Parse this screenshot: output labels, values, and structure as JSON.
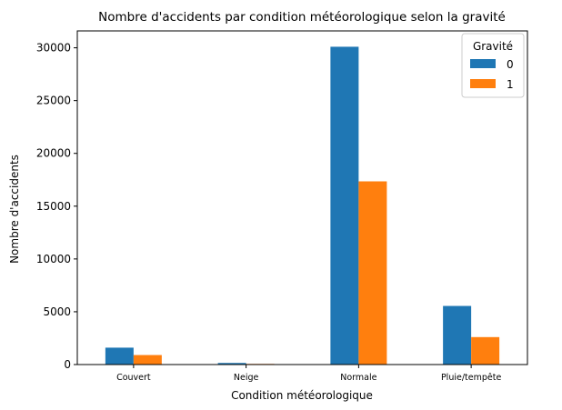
{
  "chart_data": {
    "type": "bar",
    "title": "Nombre d'accidents par condition météorologique selon la gravité",
    "xlabel": "Condition météorologique",
    "ylabel": "Nombre d'accidents",
    "categories": [
      "Couvert",
      "Neige",
      "Normale",
      "Pluie/tempête"
    ],
    "series": [
      {
        "name": "0",
        "values": [
          1600,
          150,
          30100,
          5550
        ],
        "color": "#1f77b4"
      },
      {
        "name": "1",
        "values": [
          900,
          60,
          17350,
          2600
        ],
        "color": "#ff7f0e"
      }
    ],
    "ylim": [
      0,
      31600
    ],
    "yticks": [
      0,
      5000,
      10000,
      15000,
      20000,
      25000,
      30000
    ],
    "ytick_labels": [
      "0",
      "5000",
      "10000",
      "15000",
      "20000",
      "25000",
      "30000"
    ],
    "grid": false,
    "legend": {
      "title": "Gravité",
      "position": "top-right"
    }
  }
}
